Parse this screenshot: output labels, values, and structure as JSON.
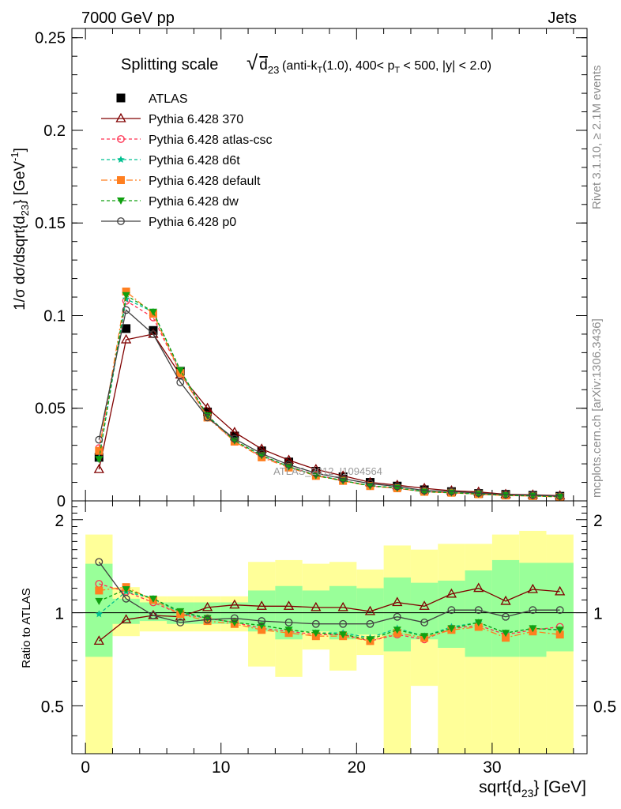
{
  "header": {
    "left": "7000 GeV pp",
    "right": "Jets"
  },
  "side_text": {
    "rivet": "Rivet 3.1.10, ≥ 2.1M events",
    "mcplots": "mcplots.cern.ch [arXiv:1306.3436]"
  },
  "watermark": "ATLAS_2012_I1094564",
  "chart_data": [
    {
      "type": "line",
      "title": "Splitting scale",
      "title_formula": "√ d23",
      "title_detail": "(anti-kT(1.0), 400< pT < 500, |y| < 2.0)",
      "ylabel": "1/σ dσ/dsqrt{d23} [GeV⁻¹]",
      "xlim": [
        -1,
        37
      ],
      "ylim": [
        0,
        0.255
      ],
      "yticks": [
        "0",
        "0.05",
        "0.1",
        "0.15",
        "0.2",
        "0.25"
      ],
      "ytick_values": [
        0,
        0.05,
        0.1,
        0.15,
        0.2,
        0.25
      ],
      "x": [
        1,
        3,
        5,
        7,
        9,
        11,
        13,
        15,
        17,
        19,
        21,
        23,
        25,
        27,
        29,
        31,
        33,
        35
      ],
      "series": [
        {
          "name": "ATLAS",
          "color": "#000000",
          "marker": "square",
          "dash": "none",
          "line": false,
          "values": [
            0.0235,
            0.093,
            0.092,
            0.07,
            0.048,
            0.035,
            0.027,
            0.021,
            0.016,
            0.013,
            0.01,
            0.008,
            0.006,
            0.005,
            0.004,
            0.0035,
            0.003,
            0.0025
          ]
        },
        {
          "name": "Pythia 6.428 370",
          "color": "#800000",
          "marker": "triangle-open",
          "dash": "none",
          "line": true,
          "values": [
            0.017,
            0.087,
            0.09,
            0.068,
            0.05,
            0.037,
            0.028,
            0.022,
            0.017,
            0.0135,
            0.01,
            0.0085,
            0.0068,
            0.0055,
            0.0048,
            0.0036,
            0.0033,
            0.0028
          ]
        },
        {
          "name": "Pythia 6.428 atlas-csc",
          "color": "#ff3050",
          "marker": "circle-open",
          "dash": "4,3",
          "line": true,
          "values": [
            0.0285,
            0.108,
            0.099,
            0.069,
            0.0455,
            0.032,
            0.024,
            0.0185,
            0.014,
            0.011,
            0.008,
            0.0068,
            0.0049,
            0.0044,
            0.0037,
            0.003,
            0.0027,
            0.0023
          ]
        },
        {
          "name": "Pythia 6.428 d6t",
          "color": "#00c090",
          "marker": "star",
          "dash": "4,3",
          "line": true,
          "values": [
            0.023,
            0.109,
            0.102,
            0.07,
            0.046,
            0.0325,
            0.0245,
            0.0185,
            0.0138,
            0.011,
            0.0082,
            0.0071,
            0.005,
            0.0045,
            0.0037,
            0.003,
            0.0027,
            0.0022
          ]
        },
        {
          "name": "Pythia 6.428 default",
          "color": "#ff7f20",
          "marker": "square",
          "dash": "8,3,2,3",
          "line": true,
          "values": [
            0.027,
            0.113,
            0.101,
            0.069,
            0.045,
            0.032,
            0.0235,
            0.018,
            0.0135,
            0.0108,
            0.008,
            0.0068,
            0.0049,
            0.0044,
            0.0036,
            0.0029,
            0.0026,
            0.0021
          ]
        },
        {
          "name": "Pythia 6.428 dw",
          "color": "#10a010",
          "marker": "triangle-down",
          "dash": "4,3",
          "line": true,
          "values": [
            0.0225,
            0.111,
            0.102,
            0.0705,
            0.046,
            0.0325,
            0.0245,
            0.0185,
            0.0137,
            0.0109,
            0.0081,
            0.007,
            0.0049,
            0.0044,
            0.0037,
            0.003,
            0.0027,
            0.0022
          ]
        },
        {
          "name": "Pythia 6.428 p0",
          "color": "#404040",
          "marker": "circle-open",
          "dash": "none",
          "line": true,
          "values": [
            0.033,
            0.103,
            0.09,
            0.064,
            0.045,
            0.0335,
            0.0255,
            0.0195,
            0.015,
            0.012,
            0.0093,
            0.0078,
            0.0056,
            0.0051,
            0.0042,
            0.0034,
            0.0031,
            0.0026
          ]
        }
      ]
    },
    {
      "type": "line",
      "ylabel": "Ratio to ATLAS",
      "xlabel": "sqrt{d23} [GeV]",
      "xlim": [
        -1,
        37
      ],
      "ylim": [
        0.35,
        2.3
      ],
      "yticks": [
        "0.5",
        "1",
        "2"
      ],
      "ytick_values": [
        0.5,
        1,
        2
      ],
      "xticks": [
        "0",
        "10",
        "20",
        "30"
      ],
      "xtick_values": [
        0,
        10,
        20,
        30
      ],
      "bin_edges": [
        0,
        2,
        4,
        6,
        8,
        10,
        12,
        14,
        16,
        18,
        20,
        22,
        24,
        26,
        28,
        30,
        32,
        34,
        36
      ],
      "band_total": {
        "color": "#ffff99",
        "lo": [
          0.35,
          0.84,
          0.87,
          0.87,
          0.87,
          0.87,
          0.67,
          0.62,
          0.76,
          0.65,
          0.73,
          0.35,
          0.58,
          0.35,
          0.35,
          0.35,
          0.35,
          0.35
        ],
        "hi": [
          1.79,
          1.21,
          1.13,
          1.13,
          1.13,
          1.13,
          1.46,
          1.48,
          1.44,
          1.46,
          1.38,
          1.65,
          1.6,
          1.67,
          1.67,
          1.79,
          1.84,
          1.79
        ]
      },
      "band_stat": {
        "color": "#99ff99",
        "lo": [
          0.72,
          0.92,
          0.94,
          0.92,
          0.92,
          0.92,
          0.87,
          0.82,
          0.87,
          0.82,
          0.85,
          0.75,
          0.82,
          0.77,
          0.72,
          0.72,
          0.72,
          0.75
        ],
        "hi": [
          1.44,
          1.11,
          1.08,
          1.08,
          1.08,
          1.08,
          1.18,
          1.22,
          1.18,
          1.22,
          1.2,
          1.3,
          1.25,
          1.27,
          1.37,
          1.48,
          1.45,
          1.45
        ]
      },
      "x": [
        1,
        3,
        5,
        7,
        9,
        11,
        13,
        15,
        17,
        19,
        21,
        23,
        25,
        27,
        29,
        31,
        33,
        35
      ],
      "series": [
        {
          "name": "Pythia 6.428 370",
          "color": "#800000",
          "marker": "triangle-open",
          "dash": "none",
          "values": [
            0.81,
            0.95,
            0.98,
            0.97,
            1.04,
            1.06,
            1.05,
            1.05,
            1.04,
            1.04,
            1.01,
            1.08,
            1.05,
            1.15,
            1.2,
            1.09,
            1.19,
            1.17
          ]
        },
        {
          "name": "Pythia 6.428 atlas-csc",
          "color": "#ff3050",
          "marker": "circle-open",
          "dash": "4,3",
          "line": true,
          "values": [
            1.24,
            1.17,
            1.08,
            0.99,
            0.96,
            0.93,
            0.89,
            0.87,
            0.85,
            0.85,
            0.81,
            0.85,
            0.82,
            0.89,
            0.91,
            0.85,
            0.88,
            0.9
          ]
        },
        {
          "name": "Pythia 6.428 d6t",
          "color": "#00c090",
          "marker": "star",
          "dash": "4,3",
          "line": true,
          "values": [
            0.99,
            1.17,
            1.11,
            1.0,
            0.96,
            0.93,
            0.91,
            0.88,
            0.86,
            0.86,
            0.83,
            0.89,
            0.84,
            0.9,
            0.93,
            0.86,
            0.89,
            0.88
          ]
        },
        {
          "name": "Pythia 6.428 default",
          "color": "#ff7f20",
          "marker": "square",
          "dash": "8,3,2,3",
          "line": true,
          "values": [
            1.18,
            1.21,
            1.1,
            0.99,
            0.94,
            0.92,
            0.88,
            0.86,
            0.84,
            0.84,
            0.81,
            0.86,
            0.83,
            0.88,
            0.9,
            0.83,
            0.87,
            0.85
          ]
        },
        {
          "name": "Pythia 6.428 dw",
          "color": "#10a010",
          "marker": "triangle-down",
          "dash": "4,3",
          "line": true,
          "values": [
            1.09,
            1.19,
            1.11,
            1.01,
            0.96,
            0.93,
            0.91,
            0.88,
            0.86,
            0.85,
            0.82,
            0.88,
            0.84,
            0.89,
            0.93,
            0.86,
            0.89,
            0.88
          ]
        },
        {
          "name": "Pythia 6.428 p0",
          "color": "#404040",
          "marker": "circle-open",
          "dash": "none",
          "line": true,
          "values": [
            1.46,
            1.11,
            0.98,
            0.93,
            0.95,
            0.96,
            0.94,
            0.93,
            0.92,
            0.92,
            0.92,
            0.97,
            0.93,
            1.02,
            1.02,
            0.97,
            1.02,
            1.02
          ]
        }
      ]
    }
  ]
}
